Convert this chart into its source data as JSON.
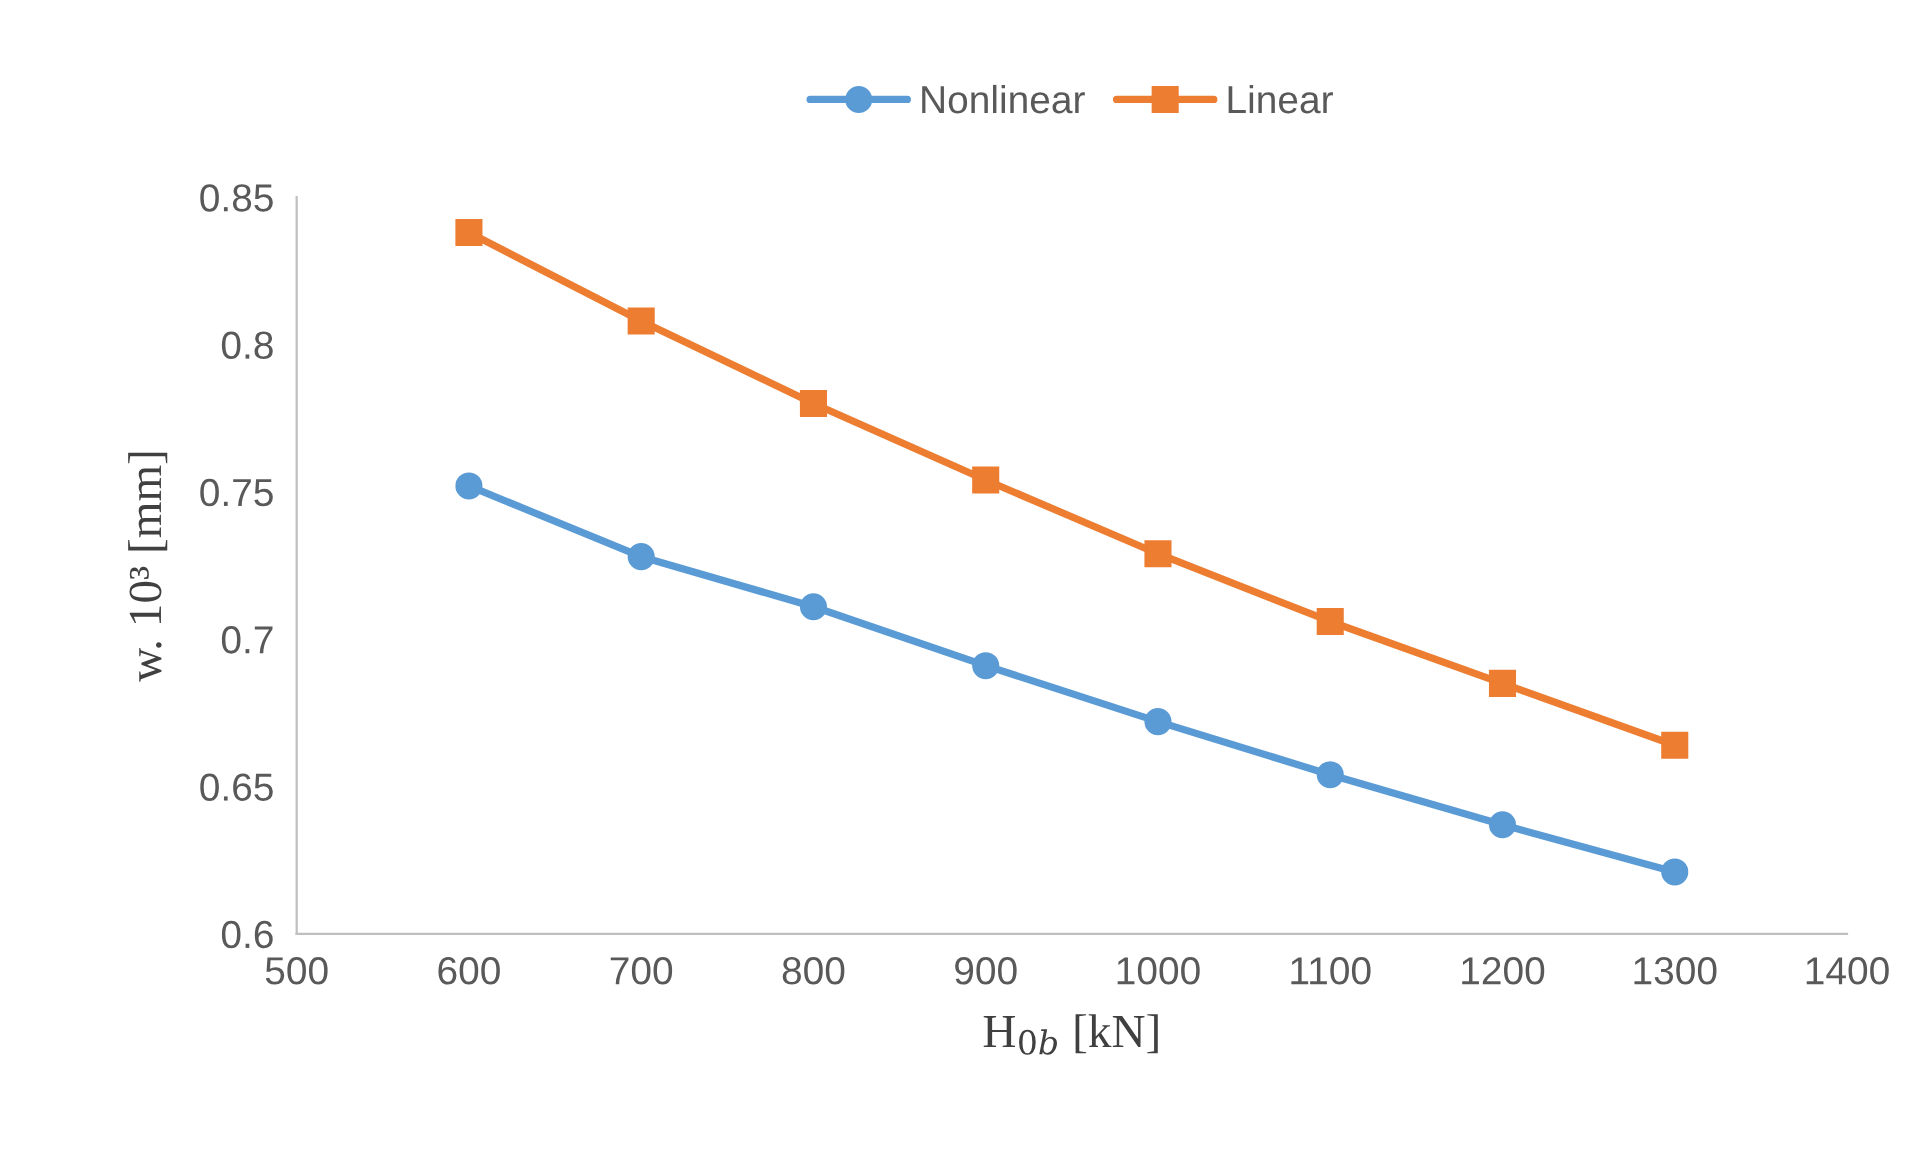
{
  "chart_data": {
    "type": "line",
    "xlabel": "H$_{0b}$ [kN]",
    "ylabel": "w. 10³ [mm]",
    "x": [
      600,
      700,
      800,
      900,
      1000,
      1100,
      1200,
      1300
    ],
    "series": [
      {
        "name": "Nonlinear",
        "color": "#5b9bd5",
        "marker": "circle",
        "values": [
          0.752,
          0.728,
          0.711,
          0.691,
          0.672,
          0.654,
          0.637,
          0.621
        ]
      },
      {
        "name": "Linear",
        "color": "#ed7d31",
        "marker": "square",
        "values": [
          0.838,
          0.808,
          0.78,
          0.754,
          0.729,
          0.706,
          0.685,
          0.664
        ]
      }
    ],
    "xlim": [
      500,
      1400
    ],
    "xticks": [
      500,
      600,
      700,
      800,
      900,
      1000,
      1100,
      1200,
      1300,
      1400
    ],
    "ylim": [
      0.6,
      0.85
    ],
    "yticks": [
      0.6,
      0.65,
      0.7,
      0.75,
      0.8,
      0.85
    ],
    "grid": false,
    "legend": "top",
    "line_style": "solid"
  }
}
